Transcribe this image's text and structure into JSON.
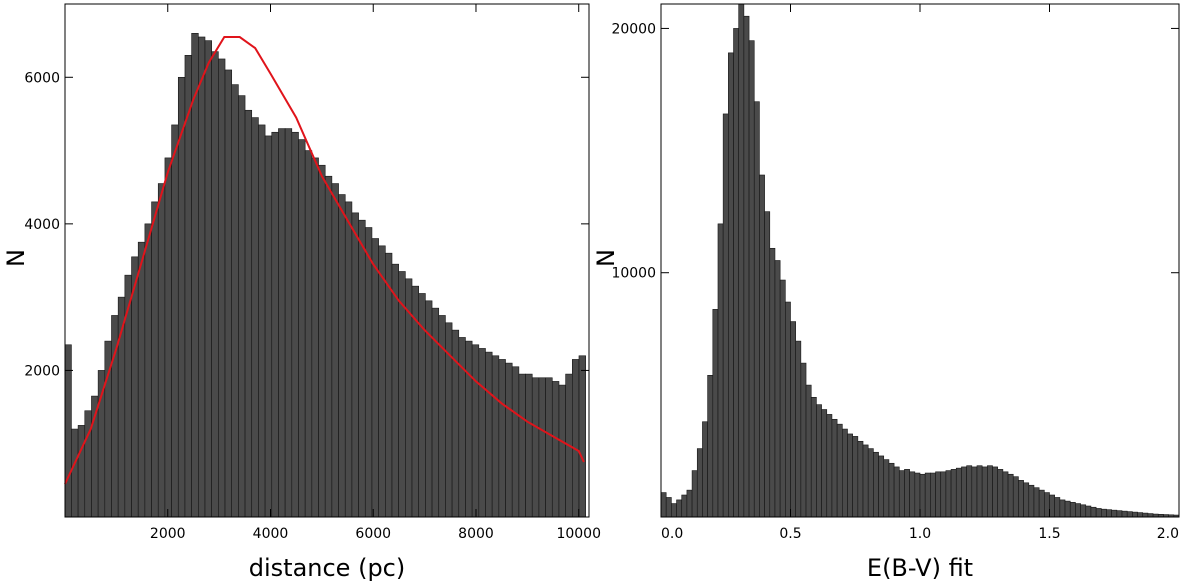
{
  "chart_data": [
    {
      "type": "bar",
      "xlabel": "distance (pc)",
      "ylabel": "N",
      "xlim": [
        0,
        10200
      ],
      "ylim": [
        0,
        7000
      ],
      "x_ticks": [
        2000,
        4000,
        6000,
        8000,
        10000
      ],
      "y_ticks": [
        2000,
        4000,
        6000
      ],
      "bin_width": 130,
      "bar_color": "#4a4a4a",
      "bars": [
        [
          60,
          2350
        ],
        [
          190,
          1200
        ],
        [
          320,
          1250
        ],
        [
          450,
          1450
        ],
        [
          580,
          1650
        ],
        [
          710,
          2000
        ],
        [
          840,
          2400
        ],
        [
          970,
          2750
        ],
        [
          1100,
          3000
        ],
        [
          1230,
          3300
        ],
        [
          1360,
          3550
        ],
        [
          1490,
          3750
        ],
        [
          1620,
          4000
        ],
        [
          1750,
          4300
        ],
        [
          1880,
          4550
        ],
        [
          2010,
          4900
        ],
        [
          2140,
          5350
        ],
        [
          2270,
          6000
        ],
        [
          2400,
          6300
        ],
        [
          2530,
          6600
        ],
        [
          2660,
          6550
        ],
        [
          2790,
          6500
        ],
        [
          2920,
          6350
        ],
        [
          3050,
          6250
        ],
        [
          3180,
          6100
        ],
        [
          3310,
          5900
        ],
        [
          3440,
          5750
        ],
        [
          3570,
          5550
        ],
        [
          3700,
          5450
        ],
        [
          3830,
          5350
        ],
        [
          3960,
          5200
        ],
        [
          4090,
          5250
        ],
        [
          4220,
          5300
        ],
        [
          4350,
          5300
        ],
        [
          4480,
          5250
        ],
        [
          4610,
          5150
        ],
        [
          4740,
          5000
        ],
        [
          4870,
          4900
        ],
        [
          5000,
          4800
        ],
        [
          5130,
          4650
        ],
        [
          5260,
          4550
        ],
        [
          5390,
          4400
        ],
        [
          5520,
          4300
        ],
        [
          5650,
          4150
        ],
        [
          5780,
          4050
        ],
        [
          5910,
          3950
        ],
        [
          6040,
          3800
        ],
        [
          6170,
          3700
        ],
        [
          6300,
          3600
        ],
        [
          6430,
          3450
        ],
        [
          6560,
          3350
        ],
        [
          6690,
          3250
        ],
        [
          6820,
          3150
        ],
        [
          6950,
          3050
        ],
        [
          7080,
          2950
        ],
        [
          7210,
          2850
        ],
        [
          7340,
          2750
        ],
        [
          7470,
          2650
        ],
        [
          7600,
          2550
        ],
        [
          7730,
          2450
        ],
        [
          7860,
          2400
        ],
        [
          7990,
          2350
        ],
        [
          8120,
          2300
        ],
        [
          8250,
          2250
        ],
        [
          8380,
          2200
        ],
        [
          8510,
          2150
        ],
        [
          8640,
          2100
        ],
        [
          8770,
          2050
        ],
        [
          8900,
          1950
        ],
        [
          9030,
          1950
        ],
        [
          9160,
          1900
        ],
        [
          9290,
          1900
        ],
        [
          9420,
          1900
        ],
        [
          9550,
          1850
        ],
        [
          9680,
          1800
        ],
        [
          9810,
          1950
        ],
        [
          9940,
          2150
        ],
        [
          10070,
          2200
        ]
      ],
      "fit_curve": {
        "color": "#e0141b",
        "x": [
          0,
          500,
          1000,
          1500,
          2000,
          2500,
          2800,
          3100,
          3400,
          3700,
          4000,
          4500,
          5000,
          5500,
          6000,
          6500,
          7000,
          7500,
          8000,
          8500,
          9000,
          9500,
          10000,
          10100
        ],
        "y": [
          450,
          1200,
          2300,
          3500,
          4700,
          5700,
          6200,
          6550,
          6550,
          6400,
          6050,
          5450,
          4650,
          4050,
          3450,
          2950,
          2550,
          2200,
          1850,
          1550,
          1300,
          1100,
          900,
          750
        ]
      }
    },
    {
      "type": "bar",
      "xlabel": "E(B-V) fit",
      "ylabel": "N",
      "xlim": [
        0.0,
        2.0
      ],
      "ylim": [
        0,
        21000
      ],
      "x_ticks": [
        "0.0",
        "0.5",
        "1.0",
        "1.5",
        "2.0"
      ],
      "y_ticks": [
        10000,
        20000
      ],
      "bin_width": 0.02,
      "bar_color": "#4a4a4a",
      "bars": [
        [
          0.01,
          1000
        ],
        [
          0.03,
          800
        ],
        [
          0.05,
          550
        ],
        [
          0.07,
          700
        ],
        [
          0.09,
          900
        ],
        [
          0.11,
          1100
        ],
        [
          0.13,
          1900
        ],
        [
          0.15,
          2800
        ],
        [
          0.17,
          3900
        ],
        [
          0.19,
          5800
        ],
        [
          0.21,
          8500
        ],
        [
          0.23,
          12000
        ],
        [
          0.25,
          16500
        ],
        [
          0.27,
          19000
        ],
        [
          0.29,
          20000
        ],
        [
          0.31,
          21000
        ],
        [
          0.33,
          20500
        ],
        [
          0.35,
          19500
        ],
        [
          0.37,
          17000
        ],
        [
          0.39,
          14000
        ],
        [
          0.41,
          12500
        ],
        [
          0.43,
          11000
        ],
        [
          0.45,
          10500
        ],
        [
          0.47,
          9700
        ],
        [
          0.49,
          8800
        ],
        [
          0.51,
          8000
        ],
        [
          0.53,
          7200
        ],
        [
          0.55,
          6300
        ],
        [
          0.57,
          5400
        ],
        [
          0.59,
          4900
        ],
        [
          0.61,
          4600
        ],
        [
          0.63,
          4400
        ],
        [
          0.65,
          4200
        ],
        [
          0.67,
          4000
        ],
        [
          0.69,
          3800
        ],
        [
          0.71,
          3600
        ],
        [
          0.73,
          3400
        ],
        [
          0.75,
          3300
        ],
        [
          0.77,
          3100
        ],
        [
          0.79,
          2950
        ],
        [
          0.81,
          2800
        ],
        [
          0.83,
          2650
        ],
        [
          0.85,
          2500
        ],
        [
          0.87,
          2350
        ],
        [
          0.89,
          2200
        ],
        [
          0.91,
          2050
        ],
        [
          0.93,
          1900
        ],
        [
          0.95,
          1950
        ],
        [
          0.97,
          1850
        ],
        [
          0.99,
          1800
        ],
        [
          1.01,
          1750
        ],
        [
          1.03,
          1800
        ],
        [
          1.05,
          1800
        ],
        [
          1.07,
          1850
        ],
        [
          1.09,
          1850
        ],
        [
          1.11,
          1900
        ],
        [
          1.13,
          1950
        ],
        [
          1.15,
          2000
        ],
        [
          1.17,
          2050
        ],
        [
          1.19,
          2100
        ],
        [
          1.21,
          2050
        ],
        [
          1.23,
          2100
        ],
        [
          1.25,
          2050
        ],
        [
          1.27,
          2100
        ],
        [
          1.29,
          2050
        ],
        [
          1.31,
          1950
        ],
        [
          1.33,
          1850
        ],
        [
          1.35,
          1750
        ],
        [
          1.37,
          1650
        ],
        [
          1.39,
          1500
        ],
        [
          1.41,
          1400
        ],
        [
          1.43,
          1300
        ],
        [
          1.45,
          1200
        ],
        [
          1.47,
          1100
        ],
        [
          1.49,
          1000
        ],
        [
          1.51,
          900
        ],
        [
          1.53,
          800
        ],
        [
          1.55,
          700
        ],
        [
          1.57,
          650
        ],
        [
          1.59,
          600
        ],
        [
          1.61,
          550
        ],
        [
          1.63,
          500
        ],
        [
          1.65,
          450
        ],
        [
          1.67,
          400
        ],
        [
          1.69,
          350
        ],
        [
          1.71,
          320
        ],
        [
          1.73,
          300
        ],
        [
          1.75,
          280
        ],
        [
          1.77,
          260
        ],
        [
          1.79,
          240
        ],
        [
          1.81,
          220
        ],
        [
          1.83,
          200
        ],
        [
          1.85,
          180
        ],
        [
          1.87,
          160
        ],
        [
          1.89,
          140
        ],
        [
          1.91,
          120
        ],
        [
          1.93,
          110
        ],
        [
          1.95,
          100
        ],
        [
          1.97,
          90
        ],
        [
          1.99,
          80
        ]
      ]
    }
  ]
}
